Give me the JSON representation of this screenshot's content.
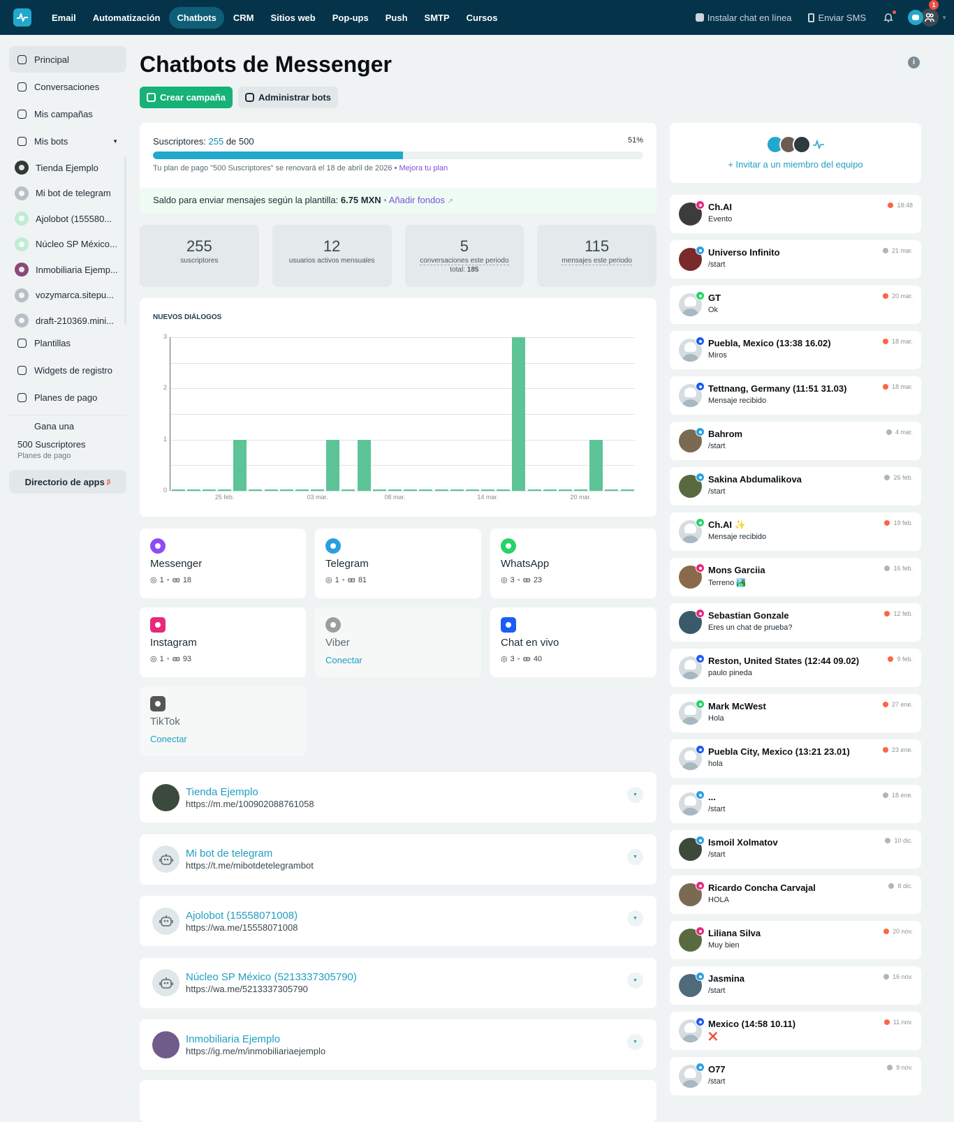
{
  "topnav": {
    "items": [
      "Email",
      "Automatización",
      "Chatbots",
      "CRM",
      "Sitios web",
      "Pop-ups",
      "Push",
      "SMTP",
      "Cursos"
    ],
    "active_index": 2,
    "install_chat": "Instalar chat en línea",
    "send_sms": "Enviar SMS",
    "account_badge": "1"
  },
  "sidebar": {
    "items": [
      {
        "label": "Principal",
        "icon": "dashboard-icon",
        "active": true
      },
      {
        "label": "Conversaciones",
        "icon": "chat-bubble-icon"
      },
      {
        "label": "Mis campañas",
        "icon": "upload-icon"
      },
      {
        "label": "Mis bots",
        "icon": "bot-icon",
        "expandable": true
      }
    ],
    "bots": [
      {
        "label": "Tienda Ejemplo",
        "type": "messenger"
      },
      {
        "label": "Mi bot de telegram",
        "type": "telegram"
      },
      {
        "label": "Ajolobot (155580...",
        "type": "whatsapp"
      },
      {
        "label": "Núcleo SP México...",
        "type": "whatsapp"
      },
      {
        "label": "Inmobiliaria Ejemp...",
        "type": "instagram"
      },
      {
        "label": "vozymarca.sitepu...",
        "type": "livechat"
      },
      {
        "label": "draft-210369.mini...",
        "type": "livechat"
      }
    ],
    "items2": [
      {
        "label": "Plantillas",
        "icon": "templates-icon"
      },
      {
        "label": "Widgets de registro",
        "icon": "widget-icon"
      },
      {
        "label": "Planes de pago",
        "icon": "plans-icon"
      }
    ],
    "promo": {
      "line1": "Gana una",
      "line2": "500 Suscriptores",
      "line3": "Planes de pago"
    },
    "apps_directory": "Directorio de apps",
    "apps_badge": "β"
  },
  "main": {
    "title": "Chatbots de Messenger",
    "create_campaign": "Crear campaña",
    "manage_bots": "Administrar bots",
    "subscribers": {
      "label": "Suscriptores:",
      "count": "255",
      "of": "de 500",
      "percent": "51%",
      "fill_percent": 51,
      "renew_text": "Tu plan de pago \"500 Suscriptores\" se renovará el 18 de abril de 2026 •",
      "upgrade_link": "Mejora tu plan",
      "balance_label": "Saldo para enviar mensajes según la plantilla:",
      "balance_value": "6.75 MXN",
      "add_funds": "Añadir fondos"
    },
    "stats": [
      {
        "value": "255",
        "label": "suscriptores"
      },
      {
        "value": "12",
        "label": "usuarios activos mensuales"
      },
      {
        "value": "5",
        "label": "conversaciones este periodo",
        "extra_label": "total:",
        "extra_value": "185"
      },
      {
        "value": "115",
        "label": "mensajes este periodo"
      }
    ],
    "channels": [
      {
        "name": "Messenger",
        "icon": "messenger-icon",
        "bots": "1",
        "subscribers": "18"
      },
      {
        "name": "Telegram",
        "icon": "telegram-icon",
        "bots": "1",
        "subscribers": "81"
      },
      {
        "name": "WhatsApp",
        "icon": "whatsapp-icon",
        "bots": "3",
        "subscribers": "23"
      },
      {
        "name": "Instagram",
        "icon": "instagram-icon",
        "bots": "1",
        "subscribers": "93"
      },
      {
        "name": "Viber",
        "icon": "viber-icon",
        "connect": "Conectar"
      },
      {
        "name": "Chat en vivo",
        "icon": "livechat-icon",
        "bots": "3",
        "subscribers": "40"
      },
      {
        "name": "TikTok",
        "icon": "tiktok-icon",
        "connect": "Conectar"
      }
    ],
    "bot_list": [
      {
        "name": "Tienda Ejemplo",
        "url": "https://m.me/100902088761058",
        "avatar": "photo"
      },
      {
        "name": "Mi bot de telegram",
        "url": "https://t.me/mibotdetelegrambot",
        "avatar": "robot"
      },
      {
        "name": "Ajolobot (15558071008)",
        "url": "https://wa.me/15558071008",
        "avatar": "robot"
      },
      {
        "name": "Núcleo SP México (5213337305790)",
        "url": "https://wa.me/5213337305790",
        "avatar": "robot"
      },
      {
        "name": "Inmobiliaria Ejemplo",
        "url": "https://ig.me/m/inmobiliariaejemplo",
        "avatar": "photo"
      }
    ]
  },
  "chart_data": {
    "type": "bar",
    "title": "NUEVOS DIÁLOGOS",
    "xlabel": "",
    "ylabel": "",
    "ylim": [
      0,
      3
    ],
    "yticks": [
      0,
      1,
      2,
      3
    ],
    "grid": true,
    "categories": [
      "22 feb.",
      "23 feb.",
      "24 feb.",
      "25 feb.",
      "26 feb.",
      "27 feb.",
      "28 feb.",
      "01 mar.",
      "02 mar.",
      "03 mar.",
      "04 mar.",
      "05 mar.",
      "06 mar.",
      "07 mar.",
      "08 mar.",
      "09 mar.",
      "10 mar.",
      "11 mar.",
      "12 mar.",
      "13 mar.",
      "14 mar.",
      "15 mar.",
      "16 mar.",
      "17 mar.",
      "18 mar.",
      "19 mar.",
      "20 mar.",
      "21 mar.",
      "22 mar.",
      "23 mar."
    ],
    "values": [
      0,
      0,
      0,
      0,
      1,
      0,
      0,
      0,
      0,
      0,
      1,
      0,
      1,
      0,
      0,
      0,
      0,
      0,
      0,
      0,
      0,
      0,
      3,
      0,
      0,
      0,
      0,
      1,
      0,
      0
    ],
    "xtick_labels": [
      {
        "index": 3,
        "label": "25 feb."
      },
      {
        "index": 9,
        "label": "03 mar."
      },
      {
        "index": 14,
        "label": "08 mar."
      },
      {
        "index": 20,
        "label": "14 mar."
      },
      {
        "index": 26,
        "label": "20 mar."
      }
    ],
    "color": "#5cc497"
  },
  "right": {
    "invite": "+ Invitar a un miembro del equipo",
    "conversations": [
      {
        "name": "Ch.AI",
        "msg": "Evento",
        "time": "18:48",
        "unread": true,
        "channel": "instagram",
        "avatar": "photo"
      },
      {
        "name": "Universo Infinito",
        "msg": "/start",
        "time": "21 mar.",
        "unread": false,
        "channel": "telegram",
        "avatar": "photo"
      },
      {
        "name": "GT",
        "msg": "Ok",
        "time": "20 mar.",
        "unread": true,
        "channel": "whatsapp",
        "avatar": "default"
      },
      {
        "name": "Puebla, Mexico (13:38 16.02)",
        "msg": "Miros",
        "time": "18 mar.",
        "unread": true,
        "channel": "livechat",
        "avatar": "default"
      },
      {
        "name": "Tettnang, Germany (11:51 31.03)",
        "msg": "Mensaje recibido",
        "time": "18 mar.",
        "unread": true,
        "channel": "livechat",
        "avatar": "default"
      },
      {
        "name": "Bahrom",
        "msg": "/start",
        "time": "4 mar.",
        "unread": false,
        "channel": "telegram",
        "avatar": "photo"
      },
      {
        "name": "Sakina Abdumalikova",
        "msg": "/start",
        "time": "26 feb.",
        "unread": false,
        "channel": "telegram",
        "avatar": "photo"
      },
      {
        "name": "Ch.AI ✨",
        "msg": "Mensaje recibido",
        "time": "19 feb.",
        "unread": true,
        "channel": "whatsapp",
        "avatar": "default"
      },
      {
        "name": "Mons Garciia",
        "msg": "Terreno 🏞️",
        "time": "16 feb.",
        "unread": false,
        "channel": "instagram",
        "avatar": "photo"
      },
      {
        "name": "Sebastian Gonzale",
        "msg": "Eres un chat de prueba?",
        "time": "12 feb.",
        "unread": true,
        "channel": "instagram",
        "avatar": "photo"
      },
      {
        "name": "Reston, United States (12:44 09.02)",
        "msg": "paulo pineda",
        "time": "9 feb.",
        "unread": true,
        "channel": "livechat",
        "avatar": "default"
      },
      {
        "name": "Mark McWest",
        "msg": "Hola",
        "time": "27 ene.",
        "unread": true,
        "channel": "whatsapp",
        "avatar": "default"
      },
      {
        "name": "Puebla City, Mexico (13:21 23.01)",
        "msg": "hola",
        "time": "23 ene.",
        "unread": true,
        "channel": "livechat",
        "avatar": "default"
      },
      {
        "name": "...",
        "msg": "/start",
        "time": "18 ene.",
        "unread": false,
        "channel": "telegram",
        "avatar": "default"
      },
      {
        "name": "Ismoil Xolmatov",
        "msg": "/start",
        "time": "10 dic.",
        "unread": false,
        "channel": "telegram",
        "avatar": "photo"
      },
      {
        "name": "Ricardo Concha Carvajal",
        "msg": "HOLA",
        "time": "8 dic.",
        "unread": false,
        "channel": "instagram",
        "avatar": "photo"
      },
      {
        "name": "Liliana Silva",
        "msg": "Muy bien",
        "time": "20 nov.",
        "unread": true,
        "channel": "instagram",
        "avatar": "photo"
      },
      {
        "name": "Jasmina",
        "msg": "/start",
        "time": "16 nov.",
        "unread": false,
        "channel": "telegram",
        "avatar": "photo"
      },
      {
        "name": "Mexico (14:58 10.11)",
        "msg": "❌",
        "time": "11 nov.",
        "unread": true,
        "channel": "livechat",
        "avatar": "default"
      },
      {
        "name": "O77",
        "msg": "/start",
        "time": "9 nov.",
        "unread": false,
        "channel": "telegram",
        "avatar": "default"
      }
    ]
  },
  "colors": {
    "nav_bg": "#05334a",
    "nav_active": "#0f5e77",
    "accent": "#22a8cc",
    "primary_button": "#16b277",
    "link": "#7b4fe0",
    "unread_dot": "#ff6347",
    "read_dot": "#b0b5b8"
  }
}
